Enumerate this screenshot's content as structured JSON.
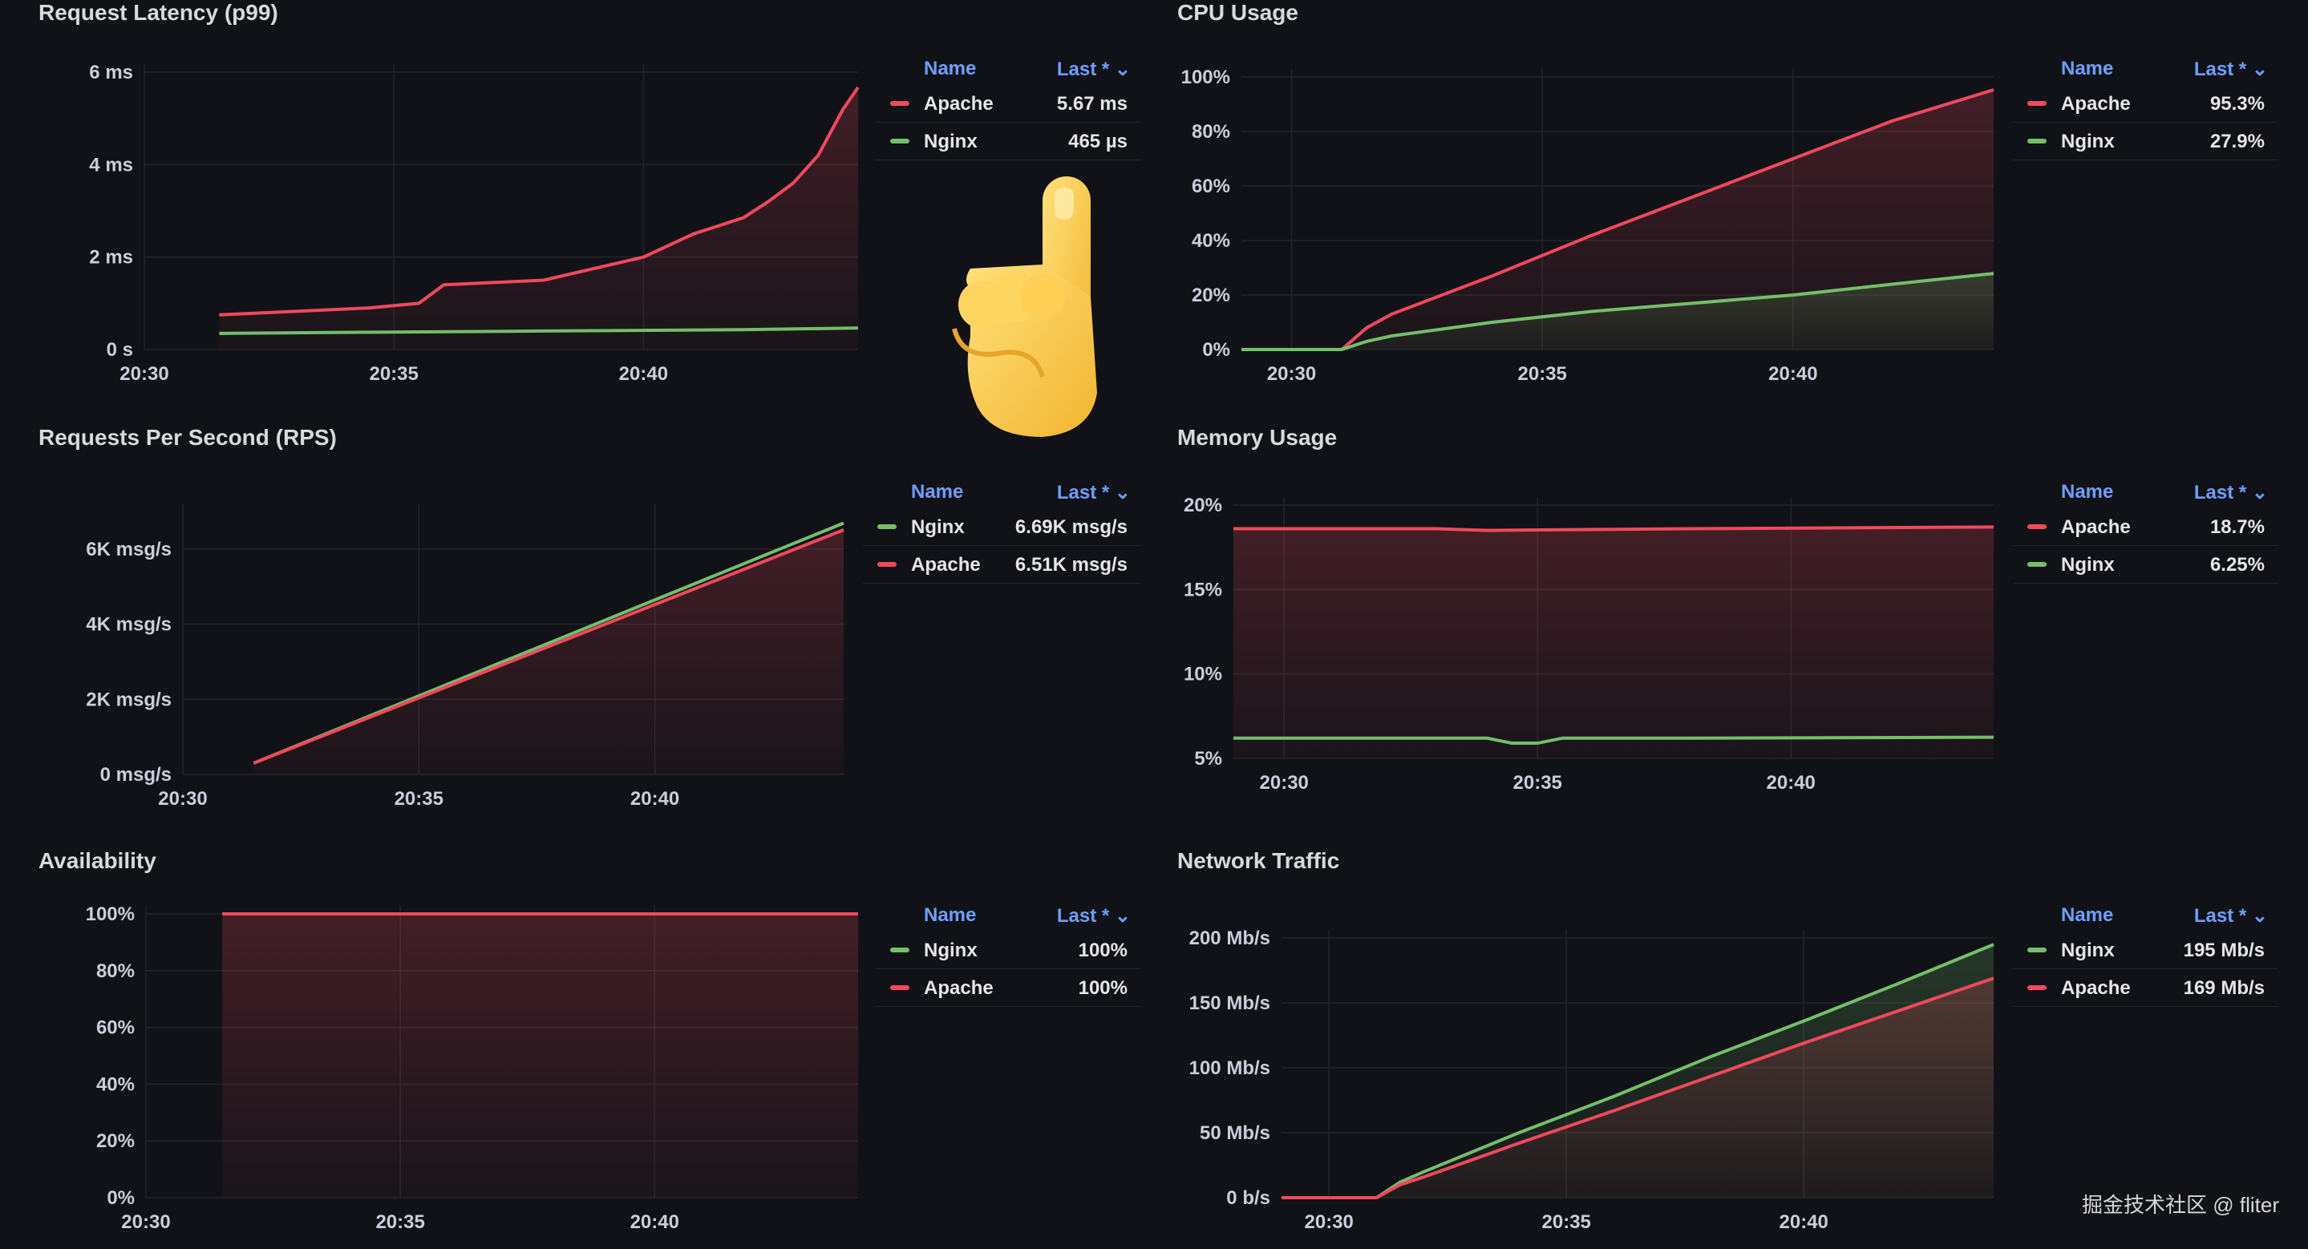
{
  "colors": {
    "apache": "#f2495c",
    "nginx": "#73bf69",
    "legend_header": "#6e9fff"
  },
  "legend_headers": {
    "name": "Name",
    "last": "Last * ⌄"
  },
  "watermark": "掘金技术社区 @ fliter",
  "panels": {
    "latency": {
      "title": "Request Latency (p99)",
      "legend": [
        {
          "name": "Apache",
          "value": "5.67 ms",
          "color": "#f2495c"
        },
        {
          "name": "Nginx",
          "value": "465 µs",
          "color": "#73bf69"
        }
      ]
    },
    "cpu": {
      "title": "CPU Usage",
      "legend": [
        {
          "name": "Apache",
          "value": "95.3%",
          "color": "#f2495c"
        },
        {
          "name": "Nginx",
          "value": "27.9%",
          "color": "#73bf69"
        }
      ]
    },
    "rps": {
      "title": "Requests Per Second (RPS)",
      "legend": [
        {
          "name": "Nginx",
          "value": "6.69K msg/s",
          "color": "#73bf69"
        },
        {
          "name": "Apache",
          "value": "6.51K msg/s",
          "color": "#f2495c"
        }
      ]
    },
    "memory": {
      "title": "Memory Usage",
      "legend": [
        {
          "name": "Apache",
          "value": "18.7%",
          "color": "#f2495c"
        },
        {
          "name": "Nginx",
          "value": "6.25%",
          "color": "#73bf69"
        }
      ]
    },
    "availability": {
      "title": "Availability",
      "legend": [
        {
          "name": "Nginx",
          "value": "100%",
          "color": "#73bf69"
        },
        {
          "name": "Apache",
          "value": "100%",
          "color": "#f2495c"
        }
      ]
    },
    "network": {
      "title": "Network Traffic",
      "legend": [
        {
          "name": "Nginx",
          "value": "195 Mb/s",
          "color": "#73bf69"
        },
        {
          "name": "Apache",
          "value": "169 Mb/s",
          "color": "#f2495c"
        }
      ]
    }
  },
  "chart_data": [
    {
      "id": "latency",
      "type": "area",
      "title": "Request Latency (p99)",
      "xlim": [
        0,
        14.3
      ],
      "ylim": [
        0,
        6
      ],
      "xticks": [
        {
          "v": 0,
          "label": "20:30"
        },
        {
          "v": 5,
          "label": "20:35"
        },
        {
          "v": 10,
          "label": "20:40"
        }
      ],
      "yticks": [
        {
          "v": 0,
          "label": "0 s"
        },
        {
          "v": 2,
          "label": "2 ms"
        },
        {
          "v": 4,
          "label": "4 ms"
        },
        {
          "v": 6,
          "label": "6 ms"
        }
      ],
      "series": [
        {
          "name": "Apache",
          "color": "#f2495c",
          "fill": true,
          "x": [
            1.5,
            2.5,
            3.5,
            4.5,
            5.5,
            6,
            7,
            8,
            9,
            10,
            11,
            12,
            12.5,
            13,
            13.5,
            14,
            14.3
          ],
          "y": [
            0.75,
            0.8,
            0.85,
            0.9,
            1.0,
            1.4,
            1.45,
            1.5,
            1.75,
            2.0,
            2.5,
            2.85,
            3.2,
            3.6,
            4.2,
            5.2,
            5.67
          ]
        },
        {
          "name": "Nginx",
          "color": "#73bf69",
          "fill": false,
          "x": [
            1.5,
            4,
            8,
            12,
            14.3
          ],
          "y": [
            0.35,
            0.37,
            0.4,
            0.43,
            0.465
          ]
        }
      ]
    },
    {
      "id": "cpu",
      "type": "area",
      "title": "CPU Usage",
      "xlim": [
        -1,
        14
      ],
      "ylim": [
        0,
        100
      ],
      "xticks": [
        {
          "v": 0,
          "label": "20:30"
        },
        {
          "v": 5,
          "label": "20:35"
        },
        {
          "v": 10,
          "label": "20:40"
        }
      ],
      "yticks": [
        {
          "v": 0,
          "label": "0%"
        },
        {
          "v": 20,
          "label": "20%"
        },
        {
          "v": 40,
          "label": "40%"
        },
        {
          "v": 60,
          "label": "60%"
        },
        {
          "v": 80,
          "label": "80%"
        },
        {
          "v": 100,
          "label": "100%"
        }
      ],
      "series": [
        {
          "name": "Apache",
          "color": "#f2495c",
          "fill": true,
          "x": [
            -1,
            1,
            1.5,
            2,
            4,
            6,
            8,
            10,
            12,
            14
          ],
          "y": [
            0,
            0,
            8,
            13,
            27,
            42,
            56,
            70,
            84,
            95.3
          ]
        },
        {
          "name": "Nginx",
          "color": "#73bf69",
          "fill": true,
          "x": [
            -1,
            1,
            1.5,
            2,
            4,
            6,
            8,
            10,
            12,
            14
          ],
          "y": [
            0,
            0,
            3,
            5,
            10,
            14,
            17,
            20,
            24,
            27.9
          ]
        }
      ]
    },
    {
      "id": "rps",
      "type": "area",
      "title": "Requests Per Second (RPS)",
      "xlim": [
        0,
        14
      ],
      "ylim": [
        0,
        7
      ],
      "xticks": [
        {
          "v": 0,
          "label": "20:30"
        },
        {
          "v": 5,
          "label": "20:35"
        },
        {
          "v": 10,
          "label": "20:40"
        }
      ],
      "yticks": [
        {
          "v": 0,
          "label": "0 msg/s"
        },
        {
          "v": 2,
          "label": "2K msg/s"
        },
        {
          "v": 4,
          "label": "4K msg/s"
        },
        {
          "v": 6,
          "label": "6K msg/s"
        }
      ],
      "series": [
        {
          "name": "Nginx",
          "color": "#73bf69",
          "fill": false,
          "x": [
            1.5,
            14
          ],
          "y": [
            0.3,
            6.69
          ]
        },
        {
          "name": "Apache",
          "color": "#f2495c",
          "fill": true,
          "x": [
            1.5,
            14
          ],
          "y": [
            0.3,
            6.51
          ]
        }
      ]
    },
    {
      "id": "memory",
      "type": "area",
      "title": "Memory Usage",
      "xlim": [
        -1,
        14
      ],
      "ylim": [
        5,
        20
      ],
      "xticks": [
        {
          "v": 0,
          "label": "20:30"
        },
        {
          "v": 5,
          "label": "20:35"
        },
        {
          "v": 10,
          "label": "20:40"
        }
      ],
      "yticks": [
        {
          "v": 5,
          "label": "5%"
        },
        {
          "v": 10,
          "label": "10%"
        },
        {
          "v": 15,
          "label": "15%"
        },
        {
          "v": 20,
          "label": "20%"
        }
      ],
      "series": [
        {
          "name": "Apache",
          "color": "#f2495c",
          "fill": true,
          "x": [
            -1,
            3,
            4,
            8,
            14
          ],
          "y": [
            18.6,
            18.6,
            18.5,
            18.6,
            18.7
          ]
        },
        {
          "name": "Nginx",
          "color": "#73bf69",
          "fill": false,
          "x": [
            -1,
            4,
            4.5,
            5,
            5.5,
            8,
            14
          ],
          "y": [
            6.2,
            6.2,
            5.9,
            5.9,
            6.2,
            6.2,
            6.25
          ]
        }
      ]
    },
    {
      "id": "availability",
      "type": "area",
      "title": "Availability",
      "xlim": [
        0,
        14
      ],
      "ylim": [
        0,
        100
      ],
      "xticks": [
        {
          "v": 0,
          "label": "20:30"
        },
        {
          "v": 5,
          "label": "20:35"
        },
        {
          "v": 10,
          "label": "20:40"
        }
      ],
      "yticks": [
        {
          "v": 0,
          "label": "0%"
        },
        {
          "v": 20,
          "label": "20%"
        },
        {
          "v": 40,
          "label": "40%"
        },
        {
          "v": 60,
          "label": "60%"
        },
        {
          "v": 80,
          "label": "80%"
        },
        {
          "v": 100,
          "label": "100%"
        }
      ],
      "series": [
        {
          "name": "Nginx",
          "color": "#73bf69",
          "fill": false,
          "x": [
            1.5,
            14
          ],
          "y": [
            100,
            100
          ]
        },
        {
          "name": "Apache",
          "color": "#f2495c",
          "fill": true,
          "x": [
            1.5,
            14
          ],
          "y": [
            100,
            100
          ]
        }
      ]
    },
    {
      "id": "network",
      "type": "area",
      "title": "Network Traffic",
      "xlim": [
        -1,
        14
      ],
      "ylim": [
        0,
        200
      ],
      "xticks": [
        {
          "v": 0,
          "label": "20:30"
        },
        {
          "v": 5,
          "label": "20:35"
        },
        {
          "v": 10,
          "label": "20:40"
        }
      ],
      "yticks": [
        {
          "v": 0,
          "label": "0 b/s"
        },
        {
          "v": 50,
          "label": "50 Mb/s"
        },
        {
          "v": 100,
          "label": "100 Mb/s"
        },
        {
          "v": 150,
          "label": "150 Mb/s"
        },
        {
          "v": 200,
          "label": "200 Mb/s"
        }
      ],
      "series": [
        {
          "name": "Nginx",
          "color": "#73bf69",
          "fill": true,
          "x": [
            -1,
            1,
            1.5,
            2,
            4,
            6,
            8,
            10,
            12,
            14
          ],
          "y": [
            0,
            0,
            12,
            20,
            50,
            78,
            108,
            136,
            165,
            195
          ]
        },
        {
          "name": "Apache",
          "color": "#f2495c",
          "fill": true,
          "x": [
            -1,
            1,
            1.5,
            2,
            4,
            6,
            8,
            10,
            12,
            14
          ],
          "y": [
            0,
            0,
            10,
            16,
            42,
            67,
            93,
            119,
            144,
            169
          ]
        }
      ]
    }
  ]
}
